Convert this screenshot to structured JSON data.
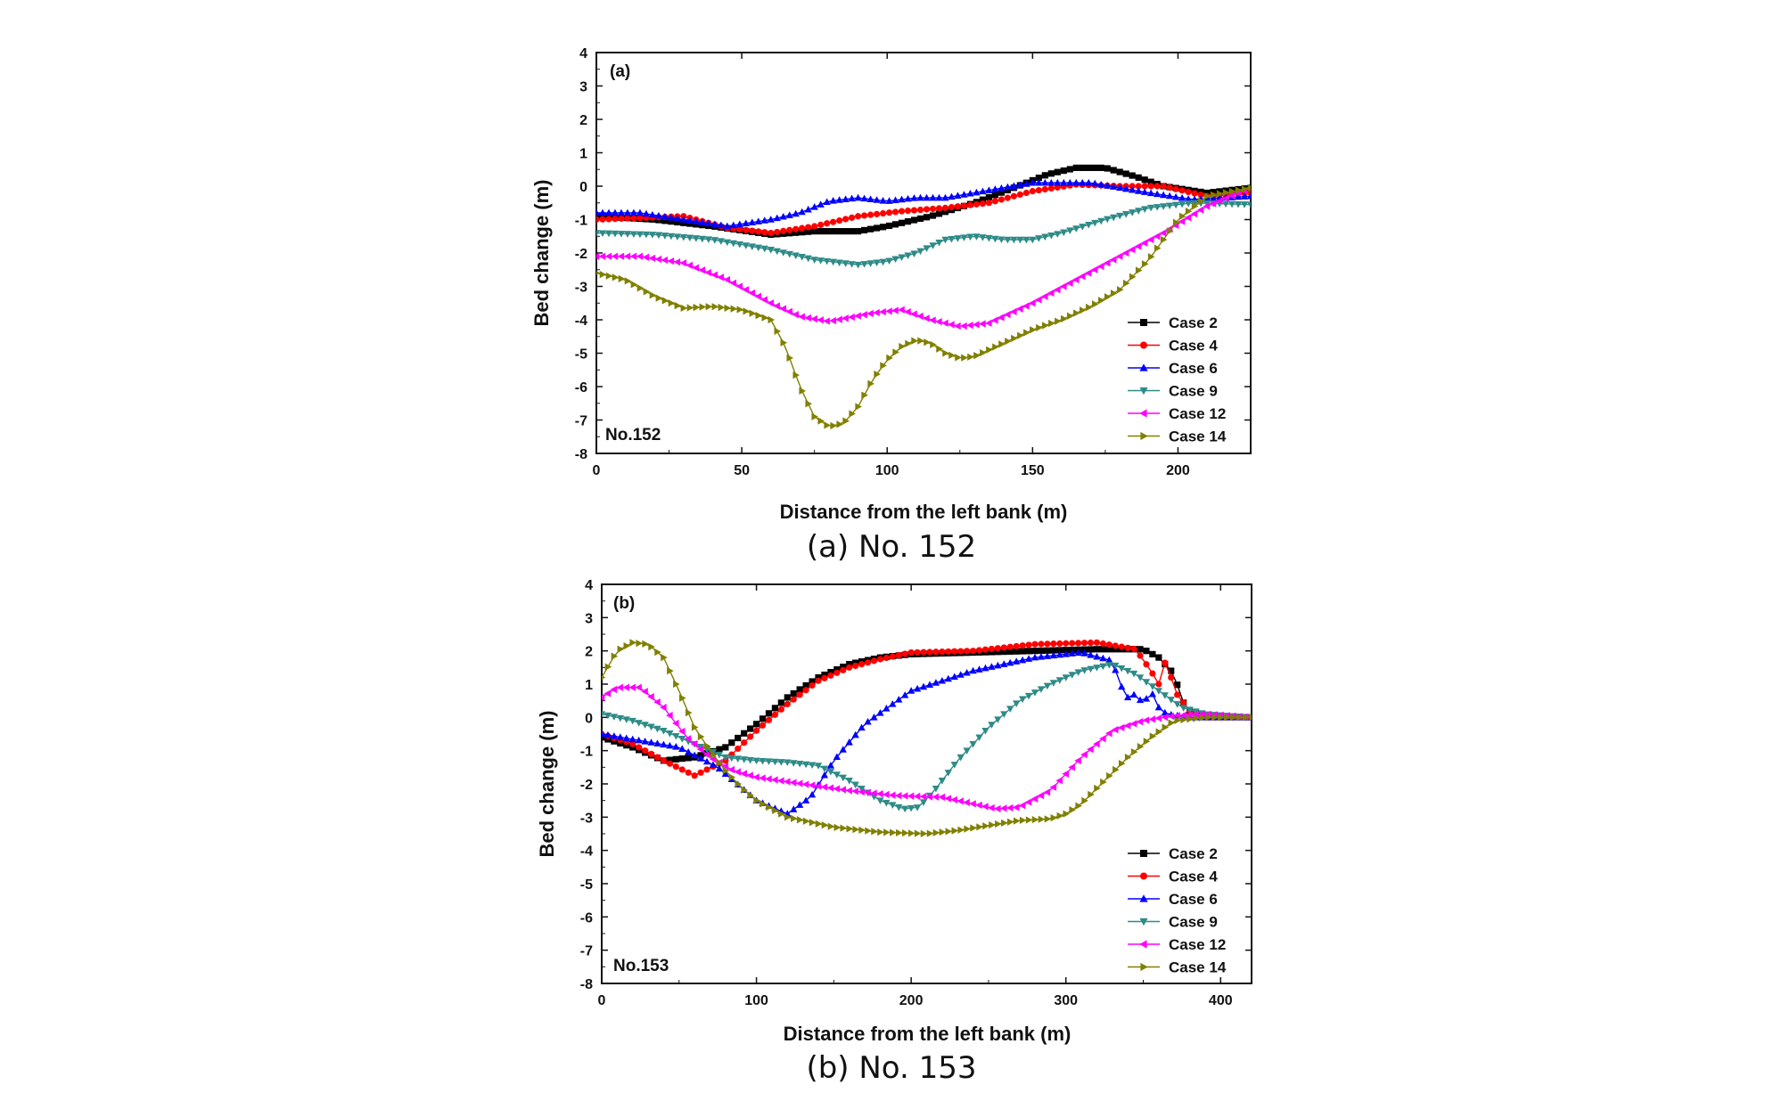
{
  "chart_data": [
    {
      "type": "line",
      "panel_label": "(a)",
      "station_label": "No.152",
      "caption": "(a) No. 152",
      "xlabel": "Distance from the left bank (m)",
      "ylabel": "Bed change (m)",
      "xlim": [
        0,
        225
      ],
      "ylim": [
        -8,
        4
      ],
      "xticks": [
        0,
        50,
        100,
        150,
        200
      ],
      "yticks": [
        -8,
        -7,
        -6,
        -5,
        -4,
        -3,
        -2,
        -1,
        0,
        1,
        2,
        3,
        4
      ],
      "legend_position": "bottom-right",
      "series": [
        {
          "name": "Case 2",
          "color": "#000000",
          "marker": "square",
          "x": [
            0,
            20,
            40,
            60,
            75,
            90,
            100,
            115,
            130,
            145,
            155,
            165,
            175,
            185,
            195,
            210,
            225
          ],
          "y": [
            -0.9,
            -1.0,
            -1.2,
            -1.45,
            -1.35,
            -1.35,
            -1.2,
            -0.9,
            -0.5,
            0.0,
            0.35,
            0.55,
            0.55,
            0.3,
            0.0,
            -0.2,
            -0.05
          ]
        },
        {
          "name": "Case 4",
          "color": "#ff0000",
          "marker": "circle",
          "x": [
            0,
            15,
            30,
            45,
            60,
            75,
            90,
            105,
            120,
            135,
            150,
            165,
            180,
            195,
            210,
            225
          ],
          "y": [
            -1.0,
            -0.95,
            -0.9,
            -1.25,
            -1.4,
            -1.2,
            -0.9,
            -0.75,
            -0.65,
            -0.5,
            -0.15,
            0.05,
            0.0,
            0.0,
            -0.3,
            -0.2
          ]
        },
        {
          "name": "Case 6",
          "color": "#0000ff",
          "marker": "triangle-up",
          "x": [
            0,
            15,
            30,
            45,
            60,
            70,
            80,
            90,
            100,
            110,
            120,
            130,
            150,
            170,
            190,
            205,
            225
          ],
          "y": [
            -0.8,
            -0.8,
            -1.0,
            -1.2,
            -1.0,
            -0.8,
            -0.45,
            -0.35,
            -0.45,
            -0.35,
            -0.35,
            -0.2,
            0.1,
            0.1,
            -0.2,
            -0.4,
            -0.3
          ]
        },
        {
          "name": "Case 9",
          "color": "#2e8b87",
          "marker": "triangle-down",
          "x": [
            0,
            20,
            40,
            60,
            75,
            90,
            100,
            110,
            120,
            130,
            140,
            150,
            160,
            175,
            190,
            205,
            225
          ],
          "y": [
            -1.4,
            -1.45,
            -1.6,
            -1.9,
            -2.2,
            -2.35,
            -2.25,
            -2.0,
            -1.6,
            -1.5,
            -1.6,
            -1.6,
            -1.4,
            -1.0,
            -0.65,
            -0.5,
            -0.55
          ]
        },
        {
          "name": "Case 12",
          "color": "#ff00ff",
          "marker": "triangle-left",
          "x": [
            0,
            15,
            30,
            45,
            60,
            70,
            80,
            95,
            105,
            115,
            125,
            135,
            150,
            165,
            180,
            195,
            210,
            225
          ],
          "y": [
            -2.1,
            -2.1,
            -2.3,
            -2.8,
            -3.5,
            -3.9,
            -4.05,
            -3.8,
            -3.7,
            -4.0,
            -4.2,
            -4.1,
            -3.5,
            -2.8,
            -2.1,
            -1.4,
            -0.6,
            -0.05
          ]
        },
        {
          "name": "Case 14",
          "color": "#808000",
          "marker": "triangle-right",
          "x": [
            0,
            10,
            20,
            30,
            40,
            50,
            60,
            65,
            70,
            75,
            80,
            85,
            90,
            95,
            100,
            105,
            110,
            115,
            120,
            125,
            130,
            140,
            150,
            160,
            170,
            180,
            190,
            200,
            210,
            225
          ],
          "y": [
            -2.6,
            -2.8,
            -3.3,
            -3.65,
            -3.6,
            -3.7,
            -4.0,
            -4.8,
            -6.0,
            -6.9,
            -7.2,
            -7.1,
            -6.6,
            -5.8,
            -5.2,
            -4.8,
            -4.6,
            -4.7,
            -5.0,
            -5.15,
            -5.1,
            -4.7,
            -4.3,
            -4.0,
            -3.6,
            -3.1,
            -2.2,
            -1.0,
            -0.3,
            -0.05
          ]
        }
      ]
    },
    {
      "type": "line",
      "panel_label": "(b)",
      "station_label": "No.153",
      "caption": "(b) No. 153",
      "xlabel": "Distance from the left bank (m)",
      "ylabel": "Bed change (m)",
      "xlim": [
        0,
        420
      ],
      "ylim": [
        -8,
        4
      ],
      "xticks": [
        0,
        100,
        200,
        300,
        400
      ],
      "yticks": [
        -8,
        -7,
        -6,
        -5,
        -4,
        -3,
        -2,
        -1,
        0,
        1,
        2,
        3,
        4
      ],
      "legend_position": "bottom-right",
      "series": [
        {
          "name": "Case 2",
          "color": "#000000",
          "marker": "square",
          "x": [
            0,
            20,
            40,
            60,
            80,
            100,
            120,
            140,
            160,
            180,
            200,
            240,
            280,
            320,
            350,
            360,
            370,
            375,
            380,
            390,
            420
          ],
          "y": [
            -0.6,
            -0.9,
            -1.3,
            -1.2,
            -0.9,
            -0.2,
            0.6,
            1.2,
            1.6,
            1.8,
            1.9,
            1.95,
            2.0,
            2.05,
            2.05,
            1.8,
            1.3,
            0.5,
            0.2,
            0.05,
            0.0
          ]
        },
        {
          "name": "Case 4",
          "color": "#ff0000",
          "marker": "circle",
          "x": [
            0,
            20,
            40,
            60,
            80,
            100,
            120,
            140,
            160,
            180,
            200,
            240,
            280,
            320,
            345,
            355,
            360,
            365,
            370,
            380,
            390,
            420
          ],
          "y": [
            -0.5,
            -0.8,
            -1.3,
            -1.75,
            -1.3,
            -0.4,
            0.4,
            1.1,
            1.5,
            1.75,
            1.95,
            2.0,
            2.2,
            2.25,
            2.05,
            1.4,
            1.0,
            1.8,
            0.8,
            0.2,
            0.0,
            0.0
          ]
        },
        {
          "name": "Case 6",
          "color": "#0000ff",
          "marker": "triangle-up",
          "x": [
            0,
            25,
            50,
            75,
            100,
            120,
            135,
            150,
            170,
            200,
            240,
            280,
            310,
            330,
            335,
            340,
            345,
            350,
            355,
            360,
            365,
            380,
            400,
            420
          ],
          "y": [
            -0.5,
            -0.7,
            -0.9,
            -1.5,
            -2.5,
            -2.9,
            -2.4,
            -1.3,
            -0.2,
            0.8,
            1.4,
            1.8,
            1.95,
            1.7,
            1.0,
            0.6,
            0.7,
            0.4,
            0.8,
            0.3,
            0.1,
            0.0,
            0.0,
            0.0
          ]
        },
        {
          "name": "Case 9",
          "color": "#2e8b87",
          "marker": "triangle-down",
          "x": [
            0,
            20,
            40,
            60,
            80,
            100,
            120,
            140,
            160,
            180,
            195,
            205,
            215,
            230,
            250,
            270,
            290,
            310,
            330,
            345,
            360,
            375,
            390,
            420
          ],
          "y": [
            0.1,
            -0.1,
            -0.4,
            -0.8,
            -1.2,
            -1.3,
            -1.35,
            -1.45,
            -1.9,
            -2.5,
            -2.75,
            -2.7,
            -2.2,
            -1.3,
            -0.3,
            0.5,
            1.0,
            1.4,
            1.6,
            1.3,
            0.8,
            0.3,
            0.1,
            0.0
          ]
        },
        {
          "name": "Case 12",
          "color": "#ff00ff",
          "marker": "triangle-left",
          "x": [
            0,
            10,
            25,
            40,
            55,
            70,
            85,
            100,
            130,
            160,
            190,
            220,
            240,
            255,
            270,
            290,
            310,
            330,
            350,
            370,
            390,
            420
          ],
          "y": [
            0.6,
            0.9,
            0.9,
            0.3,
            -0.6,
            -1.2,
            -1.6,
            -1.8,
            -2.0,
            -2.2,
            -2.35,
            -2.4,
            -2.6,
            -2.75,
            -2.7,
            -2.2,
            -1.2,
            -0.4,
            -0.1,
            0.05,
            0.1,
            0.0
          ]
        },
        {
          "name": "Case 14",
          "color": "#808000",
          "marker": "triangle-right",
          "x": [
            0,
            10,
            20,
            30,
            40,
            50,
            60,
            70,
            80,
            90,
            100,
            120,
            150,
            180,
            210,
            230,
            250,
            270,
            290,
            300,
            310,
            325,
            340,
            355,
            370,
            390,
            420
          ],
          "y": [
            1.2,
            2.0,
            2.25,
            2.2,
            1.8,
            0.8,
            -0.3,
            -1.0,
            -1.6,
            -2.1,
            -2.5,
            -3.0,
            -3.3,
            -3.45,
            -3.5,
            -3.4,
            -3.25,
            -3.1,
            -3.05,
            -2.9,
            -2.6,
            -1.9,
            -1.2,
            -0.6,
            -0.1,
            0.0,
            0.0
          ]
        }
      ]
    }
  ]
}
